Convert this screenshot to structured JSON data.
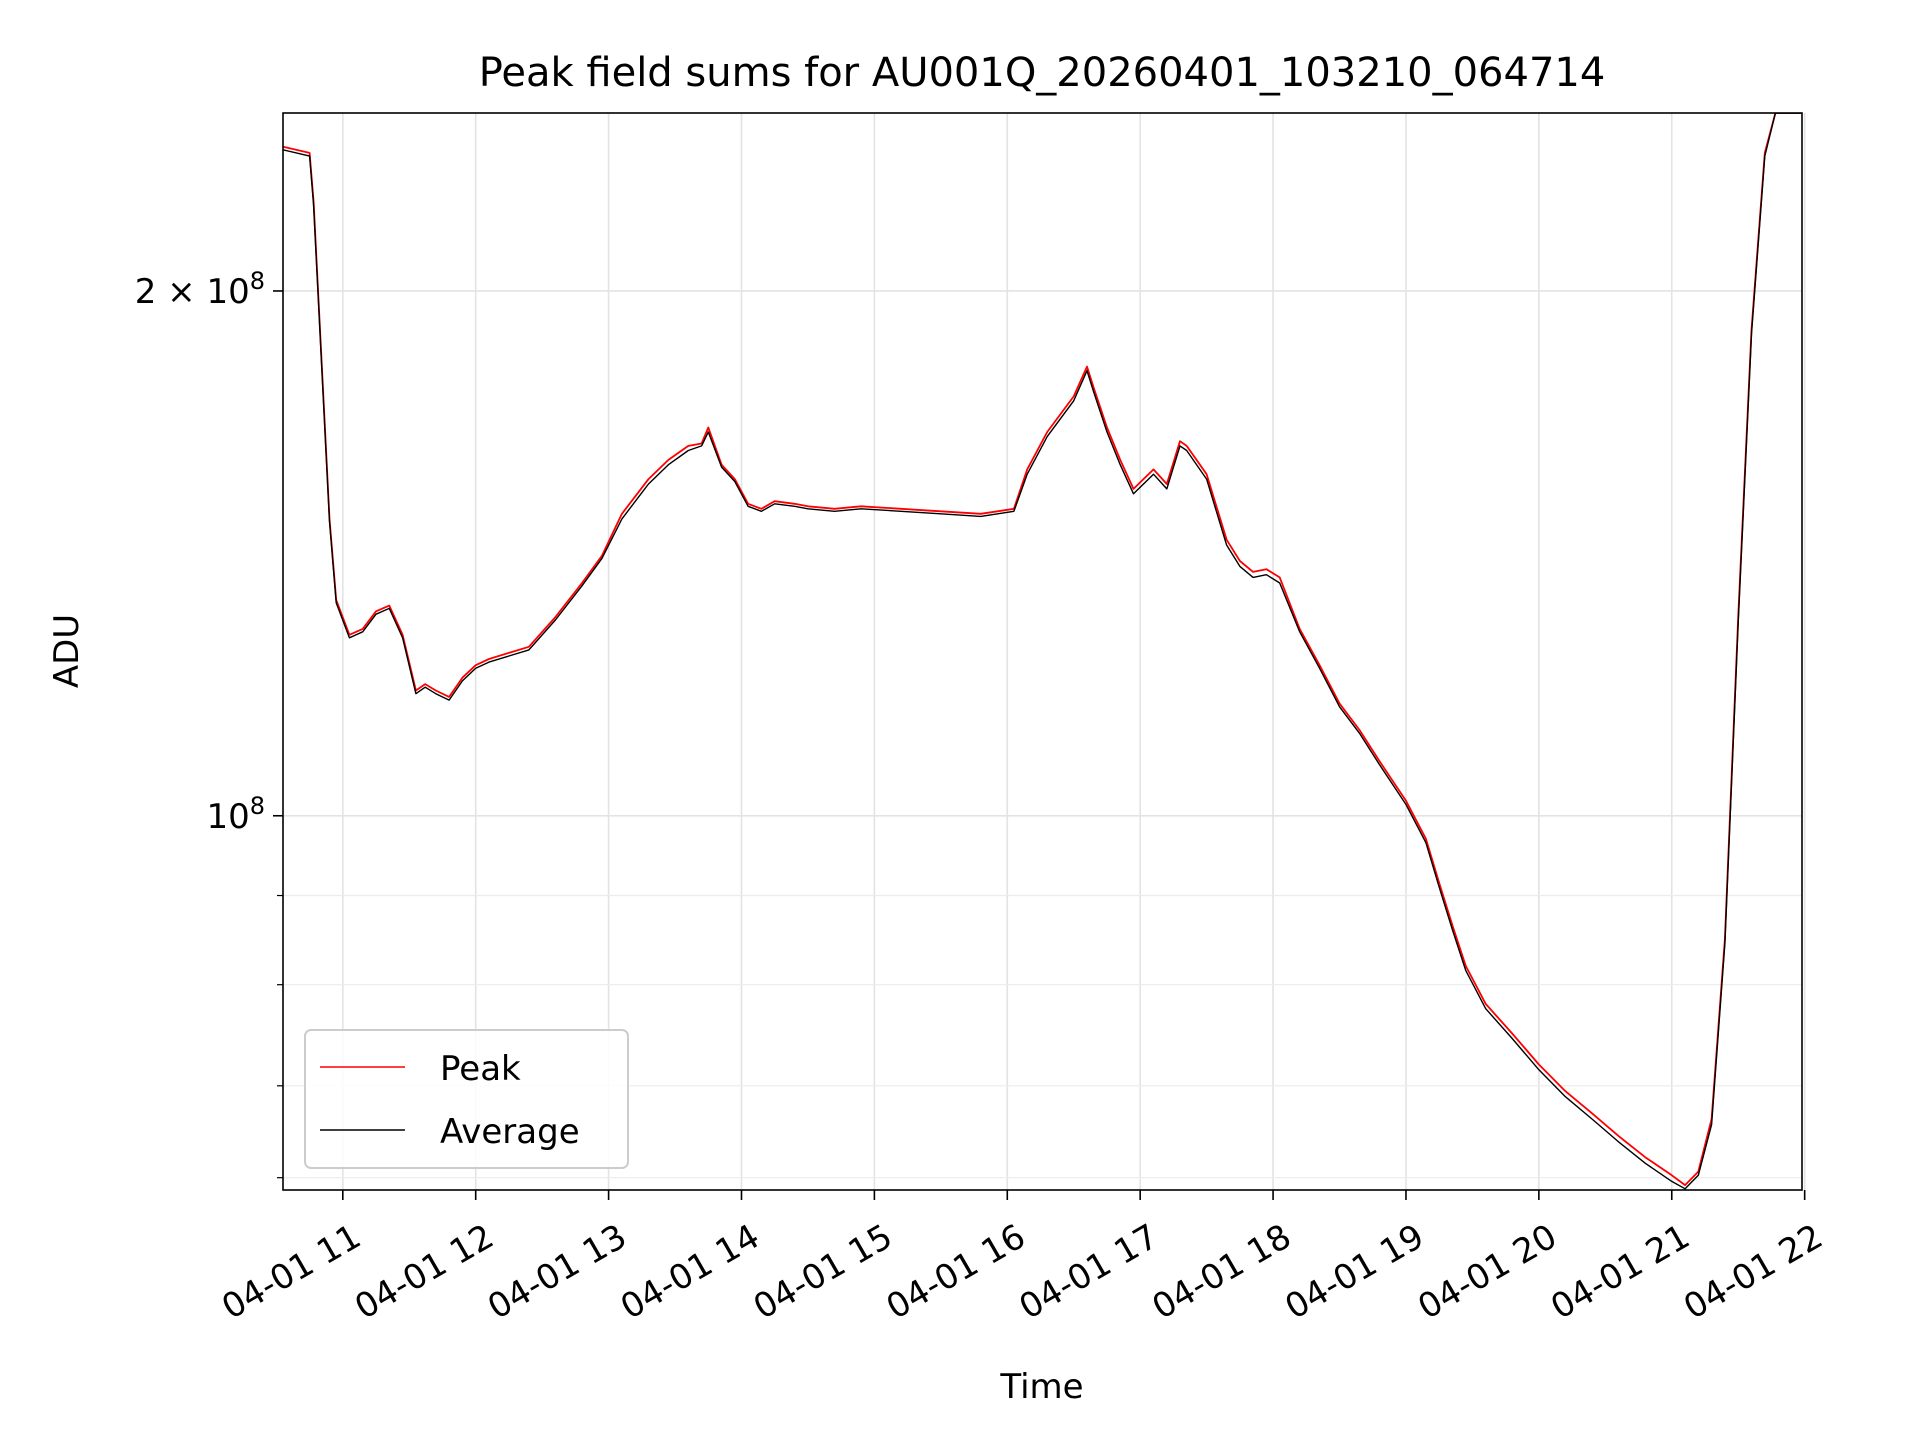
{
  "chart_data": {
    "type": "line",
    "title": "Peak field sums for AU001Q_20260401_103210_064714",
    "xlabel": "Time",
    "ylabel": "ADU",
    "yscale": "log",
    "grid": true,
    "legend_position": "lower-left",
    "x_unit": "hours since 2026-04-01 00:00",
    "xlim": [
      10.55,
      21.98
    ],
    "ylim": [
      61000000,
      253000000
    ],
    "x_ticks": [
      {
        "value": 11,
        "label": "04-01 11"
      },
      {
        "value": 12,
        "label": "04-01 12"
      },
      {
        "value": 13,
        "label": "04-01 13"
      },
      {
        "value": 14,
        "label": "04-01 14"
      },
      {
        "value": 15,
        "label": "04-01 15"
      },
      {
        "value": 16,
        "label": "04-01 16"
      },
      {
        "value": 17,
        "label": "04-01 17"
      },
      {
        "value": 18,
        "label": "04-01 18"
      },
      {
        "value": 19,
        "label": "04-01 19"
      },
      {
        "value": 20,
        "label": "04-01 20"
      },
      {
        "value": 21,
        "label": "04-01 21"
      },
      {
        "value": 22,
        "label": "04-01 22"
      }
    ],
    "y_major_ticks": [
      {
        "value": 100000000,
        "label_base": "10",
        "label_exp": "8"
      },
      {
        "value": 200000000,
        "label_base": "2 × 10",
        "label_exp": "8"
      }
    ],
    "y_minor_ticks": [
      62000000,
      70000000,
      80000000,
      90000000
    ],
    "series": [
      {
        "name": "Peak",
        "color": "#ff0000",
        "x": [
          10.55,
          10.75,
          10.78,
          10.9,
          10.95,
          11.05,
          11.15,
          11.25,
          11.35,
          11.45,
          11.55,
          11.62,
          11.7,
          11.8,
          11.9,
          12.0,
          12.1,
          12.25,
          12.4,
          12.6,
          12.8,
          12.95,
          13.1,
          13.3,
          13.45,
          13.6,
          13.7,
          13.75,
          13.85,
          13.95,
          14.05,
          14.15,
          14.25,
          14.4,
          14.5,
          14.7,
          14.9,
          15.2,
          15.5,
          15.8,
          16.05,
          16.15,
          16.3,
          16.5,
          16.6,
          16.65,
          16.75,
          16.85,
          16.95,
          17.1,
          17.2,
          17.3,
          17.35,
          17.5,
          17.65,
          17.75,
          17.85,
          17.95,
          18.05,
          18.2,
          18.35,
          18.5,
          18.65,
          18.8,
          19.0,
          19.15,
          19.25,
          19.35,
          19.45,
          19.6,
          19.8,
          20.0,
          20.2,
          20.4,
          20.6,
          20.8,
          21.0,
          21.1,
          21.2,
          21.3,
          21.4,
          21.5,
          21.6,
          21.7,
          21.78,
          21.83,
          21.9,
          21.98
        ],
        "y": [
          242000000,
          240000000,
          225000000,
          148000000,
          133000000,
          127000000,
          128000000,
          131000000,
          132000000,
          127000000,
          118000000,
          119000000,
          118000000,
          117000000,
          120000000,
          122000000,
          123000000,
          124000000,
          125000000,
          130000000,
          136000000,
          141000000,
          149000000,
          156000000,
          160000000,
          163000000,
          163500000,
          167000000,
          159000000,
          156000000,
          151000000,
          150000000,
          151500000,
          151000000,
          150500000,
          150000000,
          150500000,
          150000000,
          149500000,
          149000000,
          150000000,
          158000000,
          166000000,
          174000000,
          181000000,
          176000000,
          167000000,
          160000000,
          154000000,
          158000000,
          155000000,
          164000000,
          163000000,
          157000000,
          144000000,
          140000000,
          138000000,
          138500000,
          137000000,
          128000000,
          122000000,
          116000000,
          112000000,
          107500000,
          102000000,
          97000000,
          91500000,
          86500000,
          82000000,
          78000000,
          75000000,
          72000000,
          69500000,
          67500000,
          65500000,
          63700000,
          62200000,
          61400000,
          62500000,
          67000000,
          85000000,
          130000000,
          190000000,
          240000000,
          253000000,
          253000000,
          253000000,
          253000000
        ]
      },
      {
        "name": "Average",
        "color": "#000000",
        "x": [
          10.55,
          10.75,
          10.78,
          10.9,
          10.95,
          11.05,
          11.15,
          11.25,
          11.35,
          11.45,
          11.55,
          11.62,
          11.7,
          11.8,
          11.9,
          12.0,
          12.1,
          12.25,
          12.4,
          12.6,
          12.8,
          12.95,
          13.1,
          13.3,
          13.45,
          13.6,
          13.7,
          13.75,
          13.85,
          13.95,
          14.05,
          14.15,
          14.25,
          14.4,
          14.5,
          14.7,
          14.9,
          15.2,
          15.5,
          15.8,
          16.05,
          16.15,
          16.3,
          16.5,
          16.6,
          16.65,
          16.75,
          16.85,
          16.95,
          17.1,
          17.2,
          17.3,
          17.35,
          17.5,
          17.65,
          17.75,
          17.85,
          17.95,
          18.05,
          18.2,
          18.35,
          18.5,
          18.65,
          18.8,
          19.0,
          19.15,
          19.25,
          19.35,
          19.45,
          19.6,
          19.8,
          20.0,
          20.2,
          20.4,
          20.6,
          20.8,
          21.0,
          21.1,
          21.2,
          21.3,
          21.4,
          21.5,
          21.6,
          21.7,
          21.78,
          21.83,
          21.9,
          21.98
        ],
        "y": [
          241000000,
          239000000,
          224000000,
          147500000,
          132500000,
          126500000,
          127500000,
          130500000,
          131500000,
          126500000,
          117500000,
          118500000,
          117500000,
          116500000,
          119500000,
          121500000,
          122500000,
          123500000,
          124500000,
          129500000,
          135500000,
          140500000,
          148000000,
          155000000,
          159000000,
          162000000,
          163000000,
          166000000,
          158500000,
          155500000,
          150500000,
          149500000,
          151000000,
          150500000,
          150000000,
          149500000,
          150000000,
          149500000,
          149000000,
          148500000,
          149500000,
          157000000,
          165000000,
          173000000,
          180000000,
          175000000,
          166000000,
          159000000,
          153000000,
          157000000,
          154000000,
          163000000,
          162000000,
          156000000,
          143000000,
          139000000,
          137000000,
          137500000,
          136000000,
          127500000,
          121500000,
          115500000,
          111500000,
          107000000,
          101500000,
          96500000,
          91000000,
          86000000,
          81500000,
          77500000,
          74500000,
          71500000,
          69000000,
          67000000,
          65000000,
          63200000,
          61700000,
          61100000,
          62200000,
          66500000,
          84500000,
          129000000,
          189000000,
          239000000,
          253000000,
          253000000,
          253000000,
          253000000
        ]
      }
    ]
  }
}
